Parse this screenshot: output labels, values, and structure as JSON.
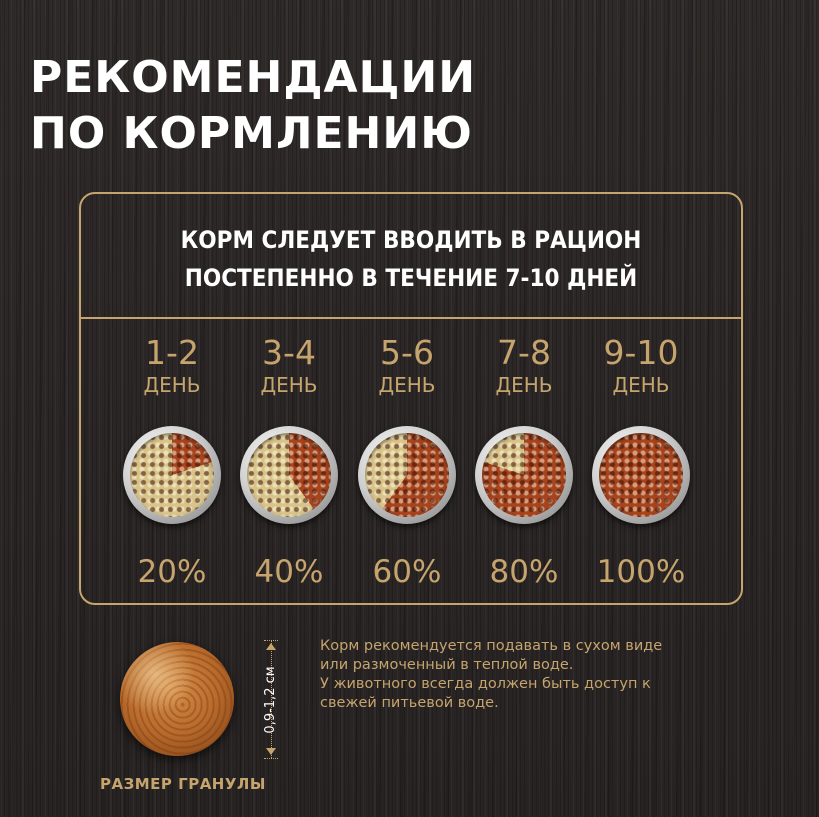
{
  "title": {
    "line1": "РЕКОМЕНДАЦИИ",
    "line2": "ПО КОРМЛЕНИЮ"
  },
  "intro": {
    "line1": "КОРМ СЛЕДУЕТ ВВОДИТЬ В РАЦИОН",
    "line2": "ПОСТЕПЕННО В ТЕЧЕНИЕ 7-10 ДНЕЙ"
  },
  "colors": {
    "accent": "#c6a46e",
    "new_food": "#a7431d",
    "old_food": "#d8c48a",
    "background": "#2b2726"
  },
  "stages": [
    {
      "days": "1-2",
      "day_word": "ДЕНЬ",
      "percent": "20%",
      "new_share": 0.2
    },
    {
      "days": "3-4",
      "day_word": "ДЕНЬ",
      "percent": "40%",
      "new_share": 0.4
    },
    {
      "days": "5-6",
      "day_word": "ДЕНЬ",
      "percent": "60%",
      "new_share": 0.6
    },
    {
      "days": "7-8",
      "day_word": "ДЕНЬ",
      "percent": "80%",
      "new_share": 0.8
    },
    {
      "days": "9-10",
      "day_word": "ДЕНЬ",
      "percent": "100%",
      "new_share": 1.0
    }
  ],
  "granule": {
    "size": "0,9-1,2 см",
    "caption": "РАЗМЕР ГРАНУЛЫ"
  },
  "note": {
    "line1": "Корм рекомендуется подавать в сухом виде",
    "line2": "или размоченный в теплой воде.",
    "line3": "У животного всегда должен быть доступ к",
    "line4": "свежей питьевой воде."
  }
}
